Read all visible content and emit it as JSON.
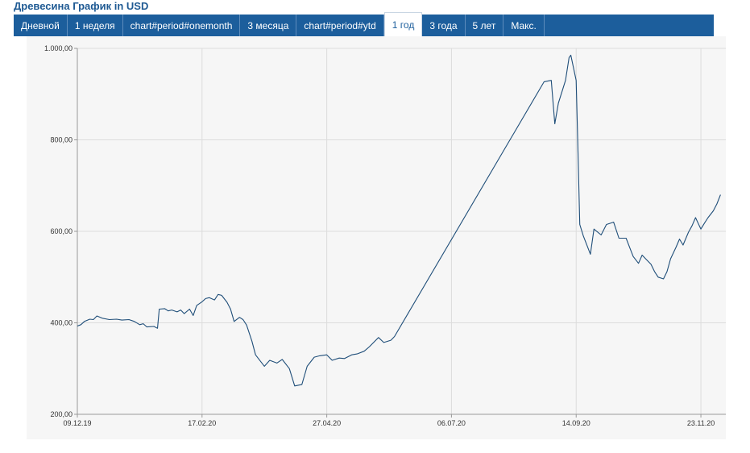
{
  "title": "Древесина График in USD",
  "tabs": [
    "Дневной",
    "1 неделя",
    "chart#period#onemonth",
    "3 месяца",
    "chart#period#ytd",
    "1 год",
    "3 года",
    "5 лет",
    "Макс."
  ],
  "active_tab": "1 год",
  "colors": {
    "line": "#1f4e79",
    "tabs_bg": "#1c5e9c",
    "title": "#1f5a93"
  },
  "chart_data": {
    "type": "line",
    "title": "Древесина График in USD",
    "xlabel": "",
    "ylabel": "",
    "ylim": [
      200,
      1000
    ],
    "y_ticks": [
      "200,00",
      "400,00",
      "600,00",
      "800,00",
      "1.000,00"
    ],
    "x_ticks": [
      "09.12.19",
      "17.02.20",
      "27.04.20",
      "06.07.20",
      "14.09.20",
      "23.11.20"
    ],
    "grid": true,
    "series": [
      {
        "values": [
          [
            "2019-12-09",
            393
          ],
          [
            "2019-12-11",
            396
          ],
          [
            "2019-12-13",
            403
          ],
          [
            "2019-12-16",
            408
          ],
          [
            "2019-12-18",
            407
          ],
          [
            "2019-12-20",
            415
          ],
          [
            "2019-12-23",
            410
          ],
          [
            "2019-12-27",
            407
          ],
          [
            "2019-12-31",
            408
          ],
          [
            "2020-01-03",
            406
          ],
          [
            "2020-01-07",
            407
          ],
          [
            "2020-01-10",
            403
          ],
          [
            "2020-01-13",
            396
          ],
          [
            "2020-01-15",
            398
          ],
          [
            "2020-01-17",
            391
          ],
          [
            "2020-01-21",
            392
          ],
          [
            "2020-01-23",
            388
          ],
          [
            "2020-01-24",
            430
          ],
          [
            "2020-01-27",
            431
          ],
          [
            "2020-01-29",
            426
          ],
          [
            "2020-01-31",
            428
          ],
          [
            "2020-02-03",
            424
          ],
          [
            "2020-02-05",
            428
          ],
          [
            "2020-02-07",
            420
          ],
          [
            "2020-02-10",
            430
          ],
          [
            "2020-02-12",
            416
          ],
          [
            "2020-02-14",
            438
          ],
          [
            "2020-02-17",
            446
          ],
          [
            "2020-02-19",
            453
          ],
          [
            "2020-02-21",
            455
          ],
          [
            "2020-02-24",
            450
          ],
          [
            "2020-02-26",
            462
          ],
          [
            "2020-02-28",
            460
          ],
          [
            "2020-03-02",
            445
          ],
          [
            "2020-03-04",
            430
          ],
          [
            "2020-03-06",
            403
          ],
          [
            "2020-03-09",
            412
          ],
          [
            "2020-03-11",
            407
          ],
          [
            "2020-03-13",
            395
          ],
          [
            "2020-03-16",
            360
          ],
          [
            "2020-03-18",
            330
          ],
          [
            "2020-03-20",
            320
          ],
          [
            "2020-03-23",
            305
          ],
          [
            "2020-03-26",
            318
          ],
          [
            "2020-03-30",
            312
          ],
          [
            "2020-04-02",
            320
          ],
          [
            "2020-04-06",
            300
          ],
          [
            "2020-04-09",
            262
          ],
          [
            "2020-04-13",
            265
          ],
          [
            "2020-04-16",
            305
          ],
          [
            "2020-04-20",
            325
          ],
          [
            "2020-04-23",
            328
          ],
          [
            "2020-04-27",
            330
          ],
          [
            "2020-04-30",
            318
          ],
          [
            "2020-05-04",
            323
          ],
          [
            "2020-05-07",
            322
          ],
          [
            "2020-05-11",
            330
          ],
          [
            "2020-05-14",
            332
          ],
          [
            "2020-05-18",
            338
          ],
          [
            "2020-05-21",
            348
          ],
          [
            "2020-05-26",
            368
          ],
          [
            "2020-05-29",
            357
          ],
          [
            "2020-06-02",
            362
          ],
          [
            "2020-06-04",
            370
          ],
          [
            "2020-08-27",
            927
          ],
          [
            "2020-08-31",
            930
          ],
          [
            "2020-09-02",
            835
          ],
          [
            "2020-09-04",
            880
          ],
          [
            "2020-09-08",
            930
          ],
          [
            "2020-09-10",
            980
          ],
          [
            "2020-09-11",
            985
          ],
          [
            "2020-09-14",
            930
          ],
          [
            "2020-09-15",
            780
          ],
          [
            "2020-09-16",
            615
          ],
          [
            "2020-09-18",
            590
          ],
          [
            "2020-09-22",
            550
          ],
          [
            "2020-09-24",
            605
          ],
          [
            "2020-09-28",
            592
          ],
          [
            "2020-10-01",
            615
          ],
          [
            "2020-10-05",
            620
          ],
          [
            "2020-10-08",
            585
          ],
          [
            "2020-10-12",
            585
          ],
          [
            "2020-10-14",
            565
          ],
          [
            "2020-10-16",
            545
          ],
          [
            "2020-10-19",
            530
          ],
          [
            "2020-10-21",
            548
          ],
          [
            "2020-10-23",
            540
          ],
          [
            "2020-10-26",
            528
          ],
          [
            "2020-10-28",
            512
          ],
          [
            "2020-10-30",
            500
          ],
          [
            "2020-11-02",
            496
          ],
          [
            "2020-11-04",
            512
          ],
          [
            "2020-11-06",
            540
          ],
          [
            "2020-11-09",
            565
          ],
          [
            "2020-11-11",
            583
          ],
          [
            "2020-11-13",
            570
          ],
          [
            "2020-11-16",
            598
          ],
          [
            "2020-11-18",
            612
          ],
          [
            "2020-11-20",
            630
          ],
          [
            "2020-11-23",
            605
          ],
          [
            "2020-11-25",
            618
          ],
          [
            "2020-11-27",
            630
          ],
          [
            "2020-11-30",
            645
          ],
          [
            "2020-12-02",
            660
          ],
          [
            "2020-12-04",
            680
          ]
        ]
      }
    ]
  }
}
